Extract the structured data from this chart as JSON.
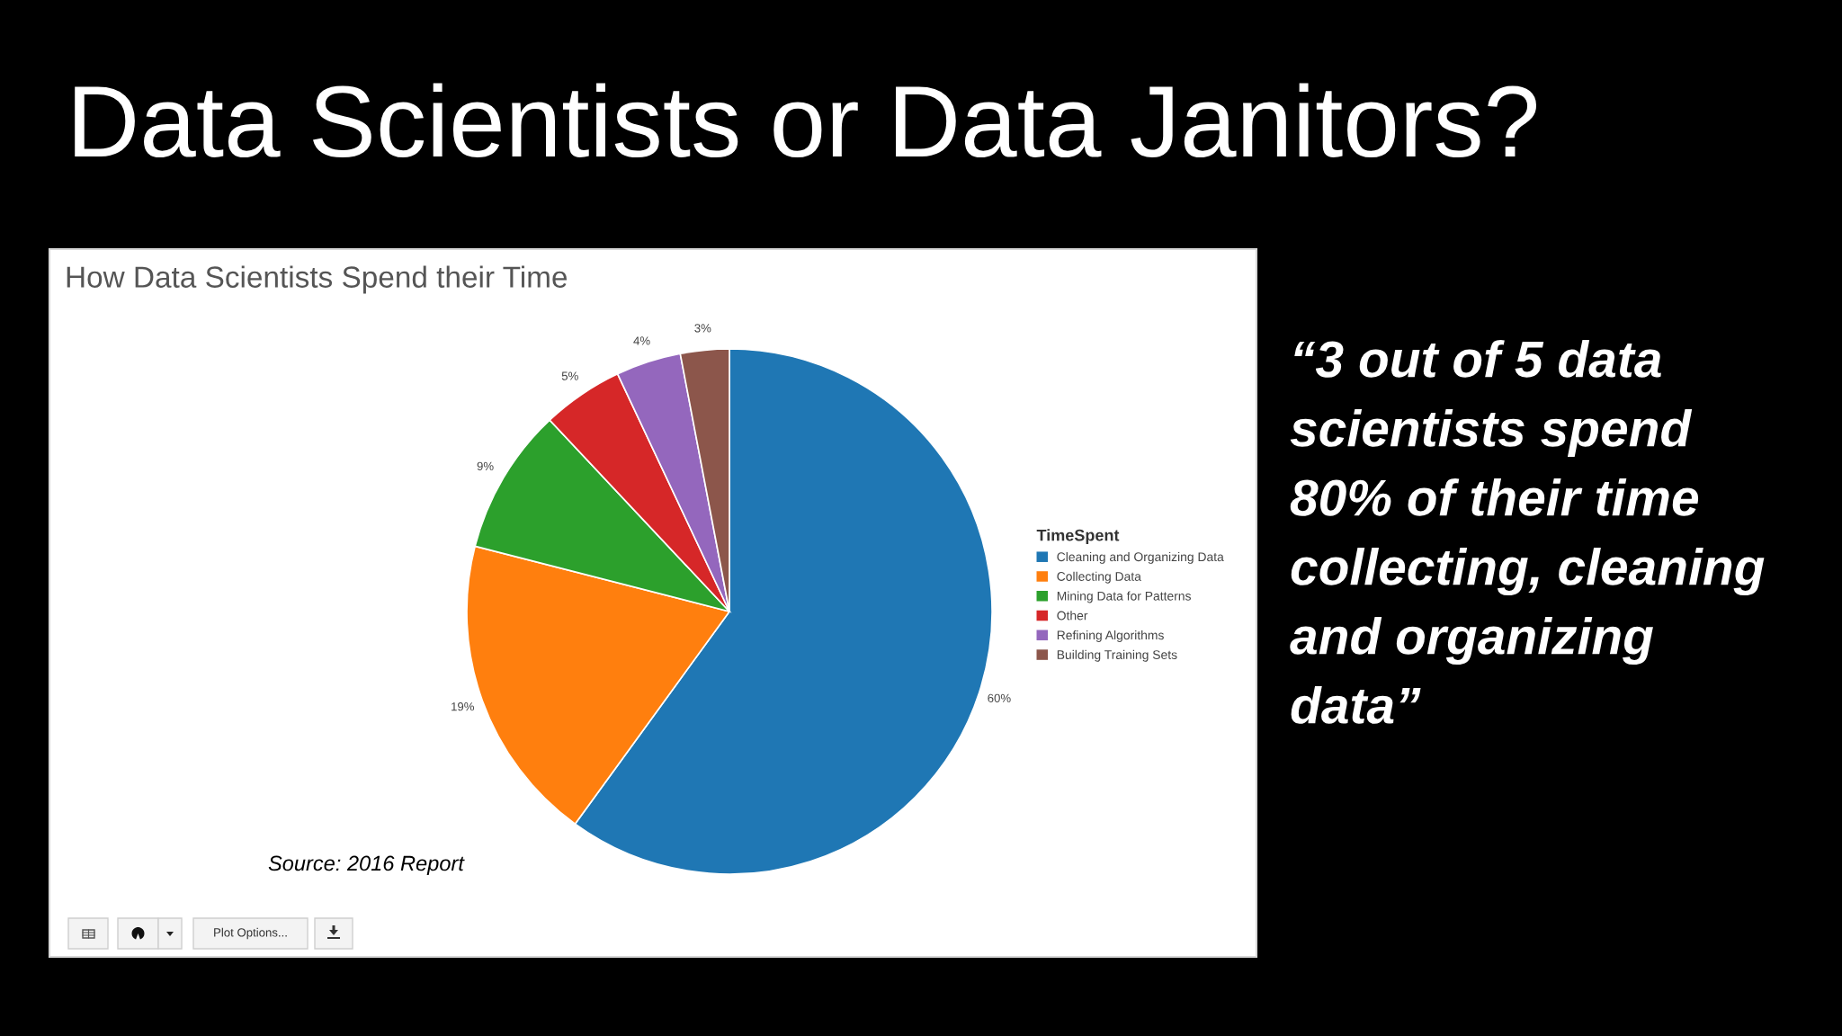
{
  "chart_data": {
    "type": "pie",
    "title": "Data Scientists or Data Janitors?",
    "subtitle": "How Data Scientists Spend their Time",
    "legend_title": "TimeSpent",
    "categories": [
      "Cleaning and Organizing Data",
      "Collecting Data",
      "Mining Data for Patterns",
      "Other",
      "Refining Algorithms",
      "Building Training Sets"
    ],
    "values": [
      60,
      19,
      9,
      5,
      4,
      3
    ],
    "colors": [
      "#1f77b4",
      "#ff7f0e",
      "#2ca02c",
      "#d62728",
      "#9467bd",
      "#8c564b"
    ],
    "value_labels": [
      "60%",
      "19%",
      "9%",
      "5%",
      "4%",
      "3%"
    ],
    "legend": "right",
    "annotations": [
      "“3 out of 5 data\nscientists spend\n80% of their time\ncollecting, cleaning\nand organizing\ndata”",
      "Source: 2016 Report",
      "Plot Options..."
    ]
  }
}
